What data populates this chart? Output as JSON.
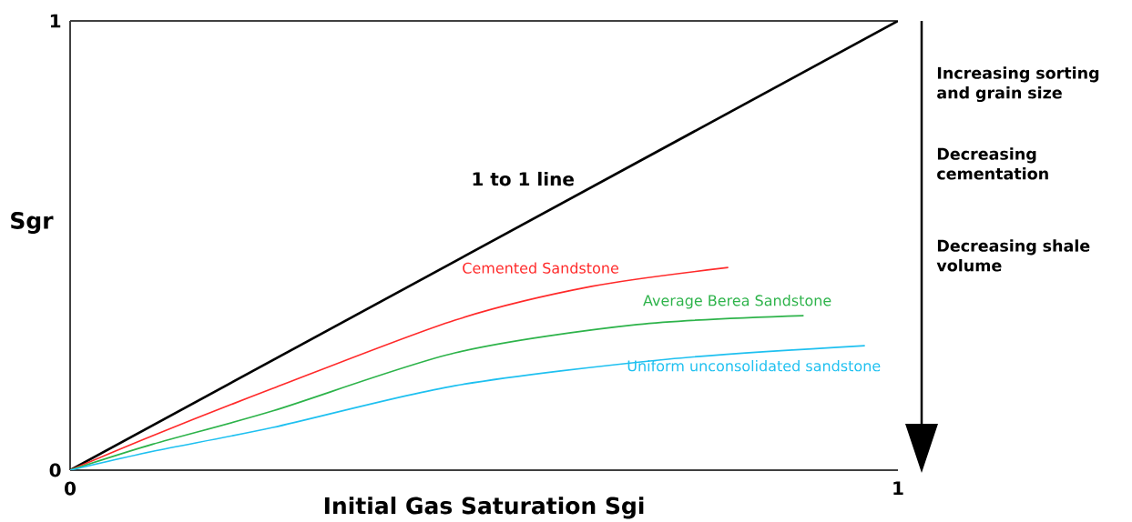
{
  "chart_data": {
    "type": "line",
    "xlabel": "Initial Gas Saturation Sgi",
    "ylabel": "Sgr",
    "xlim": [
      0,
      1
    ],
    "ylim": [
      0,
      1
    ],
    "xticks": [
      0,
      1
    ],
    "yticks": [
      0,
      1
    ],
    "annotations": [
      "Increasing sorting and grain size",
      "Decreasing cementation",
      "Decreasing shale volume"
    ],
    "series": [
      {
        "name": "1 to 1 line",
        "color": "#000000",
        "x": [
          0,
          1
        ],
        "values": [
          0,
          1
        ]
      },
      {
        "name": "Cemented Sandstone",
        "color": "#ff2a2a",
        "x": [
          0,
          0.1,
          0.245,
          0.465,
          0.63,
          0.795
        ],
        "values": [
          0,
          0.077,
          0.182,
          0.334,
          0.409,
          0.451
        ]
      },
      {
        "name": "Average Berea Sandstone",
        "color": "#2db34a",
        "x": [
          0,
          0.1,
          0.245,
          0.465,
          0.685,
          0.886
        ],
        "values": [
          0,
          0.058,
          0.132,
          0.261,
          0.324,
          0.344
        ]
      },
      {
        "name": "Uniform unconsolidated sandstone",
        "color": "#1ec0f0",
        "x": [
          0,
          0.1,
          0.245,
          0.465,
          0.722,
          0.96
        ],
        "values": [
          0,
          0.042,
          0.095,
          0.188,
          0.247,
          0.277
        ]
      }
    ]
  }
}
